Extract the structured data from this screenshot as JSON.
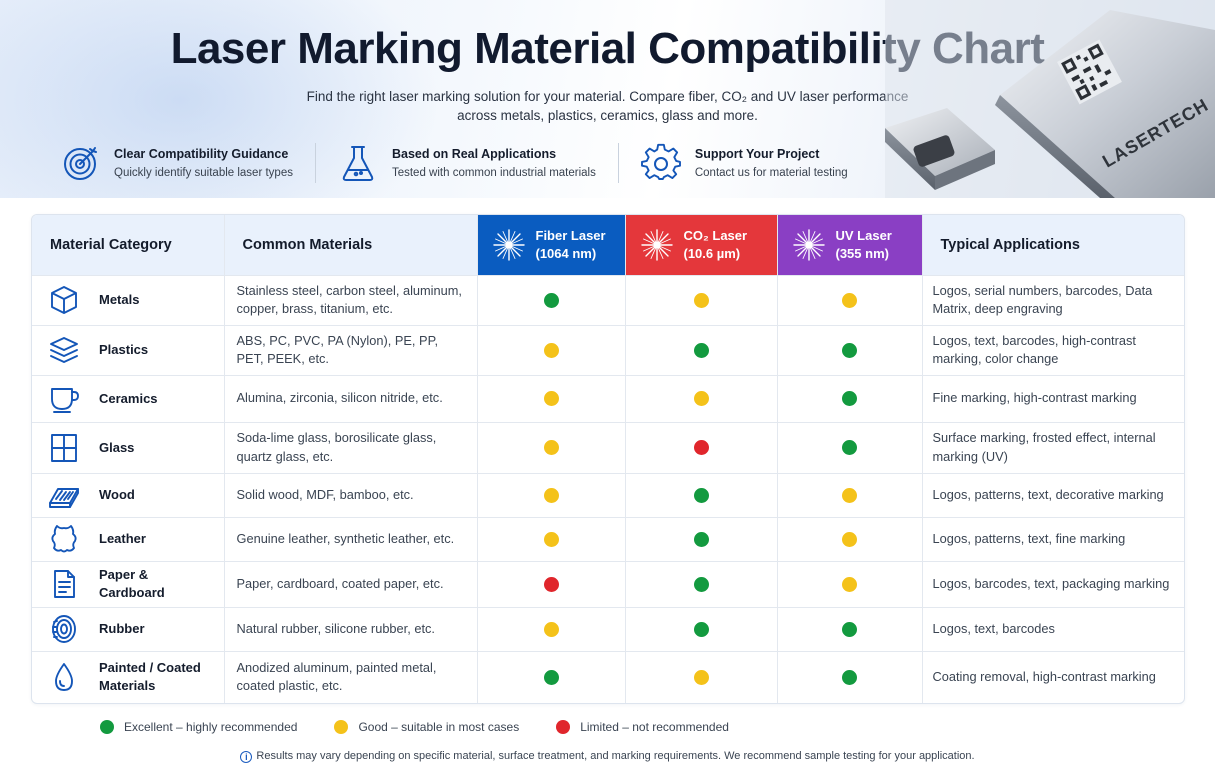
{
  "header": {
    "title": "Laser Marking Material Compatibility Chart",
    "subtitle_line1": "Find the right laser marking solution for your material. Compare fiber, CO₂ and UV laser performance",
    "subtitle_line2": "across metals, plastics, ceramics, glass and more.",
    "features": [
      {
        "title": "Clear Compatibility Guidance",
        "subtitle": "Quickly identify suitable laser types",
        "icon": "target-icon"
      },
      {
        "title": "Based on Real Applications",
        "subtitle": "Tested with common industrial materials",
        "icon": "flask-icon"
      },
      {
        "title": "Support Your Project",
        "subtitle": "Contact us for material testing",
        "icon": "gear-icon"
      }
    ],
    "device_label": "LASERTECH"
  },
  "table": {
    "headers": {
      "category": "Material Category",
      "materials": "Common Materials",
      "fiber_line1": "Fiber Laser",
      "fiber_line2": "(1064 nm)",
      "co2_line1": "CO₂ Laser",
      "co2_line2": "(10.6 µm)",
      "uv_line1": "UV Laser",
      "uv_line2": "(355 nm)",
      "applications": "Typical Applications"
    },
    "rows": [
      {
        "icon": "cube-icon",
        "category": "Metals",
        "category_line2": "",
        "materials": "Stainless steel, carbon steel, aluminum, copper, brass, titanium, etc.",
        "fiber": "excellent",
        "co2": "good",
        "uv": "good",
        "applications": "Logos, serial numbers, barcodes, Data Matrix, deep engraving"
      },
      {
        "icon": "layers-icon",
        "category": "Plastics",
        "category_line2": "",
        "materials": "ABS, PC, PVC, PA (Nylon), PE, PP, PET, PEEK, etc.",
        "fiber": "good",
        "co2": "excellent",
        "uv": "excellent",
        "applications": "Logos, text, barcodes, high-contrast marking, color change"
      },
      {
        "icon": "cup-icon",
        "category": "Ceramics",
        "category_line2": "",
        "materials": "Alumina, zirconia, silicon nitride, etc.",
        "fiber": "good",
        "co2": "good",
        "uv": "excellent",
        "applications": "Fine marking, high-contrast marking"
      },
      {
        "icon": "window-icon",
        "category": "Glass",
        "category_line2": "",
        "materials": "Soda-lime glass, borosilicate glass, quartz glass, etc.",
        "fiber": "good",
        "co2": "limited",
        "uv": "excellent",
        "applications": "Surface marking, frosted effect, internal marking (UV)"
      },
      {
        "icon": "wood-plank-icon",
        "category": "Wood",
        "category_line2": "",
        "materials": "Solid wood, MDF, bamboo, etc.",
        "fiber": "good",
        "co2": "excellent",
        "uv": "good",
        "applications": "Logos, patterns, text, decorative marking"
      },
      {
        "icon": "leather-hide-icon",
        "category": "Leather",
        "category_line2": "",
        "materials": "Genuine leather, synthetic leather, etc.",
        "fiber": "good",
        "co2": "excellent",
        "uv": "good",
        "applications": "Logos, patterns, text, fine marking"
      },
      {
        "icon": "document-icon",
        "category": "Paper & Cardboard",
        "category_line2": "",
        "materials": "Paper, cardboard, coated paper, etc.",
        "fiber": "limited",
        "co2": "excellent",
        "uv": "good",
        "applications": "Logos, barcodes, text, packaging marking"
      },
      {
        "icon": "tire-icon",
        "category": "Rubber",
        "category_line2": "",
        "materials": "Natural rubber, silicone rubber, etc.",
        "fiber": "good",
        "co2": "excellent",
        "uv": "excellent",
        "applications": "Logos, text, barcodes"
      },
      {
        "icon": "droplet-icon",
        "category": "Painted / Coated",
        "category_line2": "Materials",
        "materials": "Anodized aluminum, painted metal, coated plastic, etc.",
        "fiber": "excellent",
        "co2": "good",
        "uv": "excellent",
        "applications": "Coating removal, high-contrast marking"
      }
    ]
  },
  "ratings": {
    "excellent": {
      "color": "#139a3f",
      "label": "Excellent – highly recommended"
    },
    "good": {
      "color": "#f4c21a",
      "label": "Good – suitable in most cases"
    },
    "limited": {
      "color": "#e0262c",
      "label": "Limited – not recommended"
    }
  },
  "colors": {
    "fiber": "#0a5cc0",
    "co2": "#e4373b",
    "uv": "#8a3fc4",
    "icon": "#1456b8"
  },
  "footer_note": "Results may vary depending on specific material, surface treatment, and marking requirements. We recommend sample testing for your application."
}
